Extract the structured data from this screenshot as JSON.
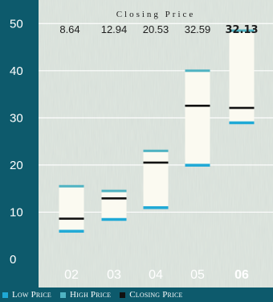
{
  "chart_data": {
    "type": "range-bar",
    "title": "Closing Price",
    "categories": [
      "02",
      "03",
      "04",
      "05",
      "06"
    ],
    "highlight_category": "06",
    "series": [
      {
        "name": "Low Price",
        "values": [
          6,
          8.5,
          11,
          20,
          29
        ]
      },
      {
        "name": "High Price",
        "values": [
          15.5,
          14.5,
          23,
          40,
          48.5
        ]
      },
      {
        "name": "Closing Price",
        "values": [
          8.64,
          12.94,
          20.53,
          32.59,
          32.13
        ]
      }
    ],
    "closing_labels": [
      "8.64",
      "12.94",
      "20.53",
      "32.59",
      "32.13"
    ],
    "ylim": [
      0,
      55
    ],
    "yticks": [
      0,
      10,
      20,
      30,
      40,
      50
    ],
    "grid": true,
    "legend": "bottom",
    "colors": {
      "background": "#0d5a6c",
      "low": "#1fa9d6",
      "high": "#4fb3c2",
      "close": "#111111",
      "box": "#fbfaf1"
    }
  }
}
